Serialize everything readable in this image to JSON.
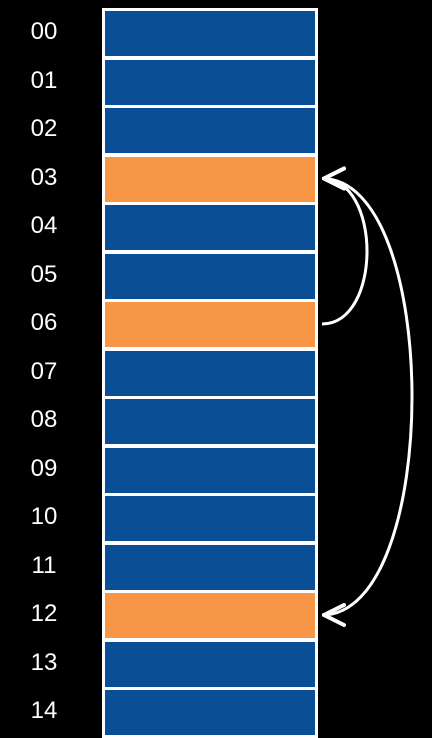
{
  "colors": {
    "background": "#000000",
    "slot_empty": "#0a4f96",
    "slot_highlighted": "#f79646",
    "border": "#ffffff",
    "label_text": "#ffffff",
    "arrow": "#ffffff"
  },
  "slots": [
    {
      "index": "00",
      "highlighted": false
    },
    {
      "index": "01",
      "highlighted": false
    },
    {
      "index": "02",
      "highlighted": false
    },
    {
      "index": "03",
      "highlighted": true
    },
    {
      "index": "04",
      "highlighted": false
    },
    {
      "index": "05",
      "highlighted": false
    },
    {
      "index": "06",
      "highlighted": true
    },
    {
      "index": "07",
      "highlighted": false
    },
    {
      "index": "08",
      "highlighted": false
    },
    {
      "index": "09",
      "highlighted": false
    },
    {
      "index": "10",
      "highlighted": false
    },
    {
      "index": "11",
      "highlighted": false
    },
    {
      "index": "12",
      "highlighted": true
    },
    {
      "index": "13",
      "highlighted": false
    },
    {
      "index": "14",
      "highlighted": false
    }
  ],
  "arrows": [
    {
      "from": "06",
      "to": "03",
      "arrowhead_at": "to"
    },
    {
      "from": "03",
      "to": "12",
      "arrowhead_at": "both"
    }
  ]
}
